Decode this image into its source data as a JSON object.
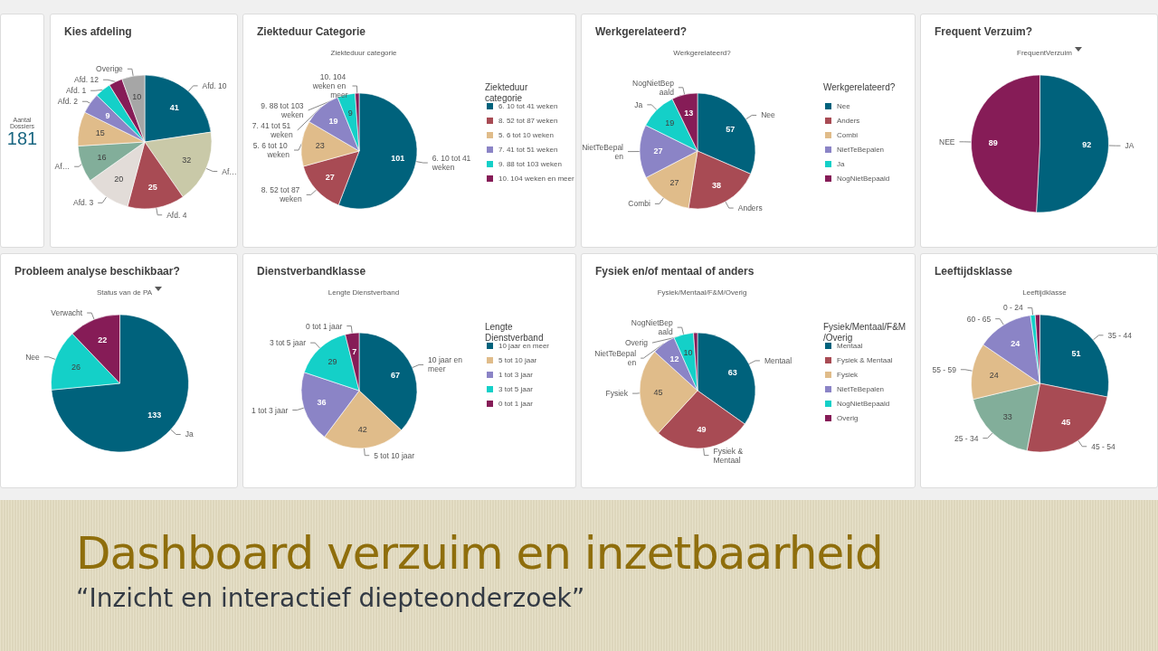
{
  "chart_data": [
    {
      "type": "other",
      "annotations": [
        "Aantal Dossiers",
        "181"
      ]
    },
    {
      "type": "pie",
      "title": "Kies afdeling",
      "categories": [
        "Afd. 10",
        "Af…",
        "Afd. 4",
        "Afd. 3",
        "Af…",
        null,
        "Afd. 2",
        "Afd. 1",
        "Afd. 12",
        "Overige"
      ],
      "values": [
        41,
        32,
        25,
        20,
        16,
        15,
        9,
        7,
        6,
        10
      ],
      "value_labels": [
        "41",
        "32",
        "25",
        "20",
        "16",
        "15",
        "9",
        null,
        null,
        "10"
      ],
      "colors": [
        "#00627c",
        "#c9c9a8",
        "#a84b54",
        "#e2dcd8",
        "#82ae9a",
        "#e0bc8a",
        "#8b84c6",
        "#14d0c8",
        "#861c57",
        "#a6a6a6"
      ]
    },
    {
      "type": "pie",
      "title": "Ziekteduur Categorie",
      "subtitle": "Ziekteduur categorie",
      "legend": "right",
      "legend_title": "Ziekteduur categorie",
      "categories": [
        "6. 10 tot 41 weken",
        "8. 52 tot 87 weken",
        "5. 6 tot 10 weken",
        "7. 41 tot 51 weken",
        "9. 88 tot 103 weken",
        "10. 104 weken en meer"
      ],
      "values": [
        101,
        27,
        23,
        19,
        9,
        2
      ],
      "value_labels": [
        "101",
        "27",
        "23",
        "19",
        "9",
        null
      ],
      "colors": [
        "#00627c",
        "#a84b54",
        "#e0bc8a",
        "#8b84c6",
        "#14d0c8",
        "#861c57"
      ]
    },
    {
      "type": "pie",
      "title": "Werkgerelateerd?",
      "subtitle": "Werkgerelateerd?",
      "legend": "right",
      "legend_title": "Werkgerelateerd?",
      "categories": [
        "Nee",
        "Anders",
        "Combi",
        "NietTeBepalen",
        "Ja",
        "NogNietBepaald"
      ],
      "values": [
        57,
        38,
        27,
        27,
        19,
        13
      ],
      "value_labels": [
        "57",
        "38",
        "27",
        "27",
        "19",
        "13"
      ],
      "colors": [
        "#00627c",
        "#a84b54",
        "#e0bc8a",
        "#8b84c6",
        "#14d0c8",
        "#861c57"
      ]
    },
    {
      "type": "pie",
      "title": "Frequent Verzuim?",
      "subtitle": "FrequentVerzuim",
      "categories": [
        "JA",
        "NEE"
      ],
      "values": [
        92,
        89
      ],
      "value_labels": [
        "92",
        "89"
      ],
      "colors": [
        "#00627c",
        "#861c57"
      ]
    },
    {
      "type": "pie",
      "title": "Probleem analyse beschikbaar?",
      "subtitle": "Status van de PA",
      "categories": [
        "Ja",
        "Nee",
        "Verwacht"
      ],
      "values": [
        133,
        26,
        22
      ],
      "value_labels": [
        "133",
        "26",
        "22"
      ],
      "colors": [
        "#00627c",
        "#14d0c8",
        "#861c57"
      ]
    },
    {
      "type": "pie",
      "title": "Dienstverbandklasse",
      "subtitle": "Lengte Dienstverband",
      "legend": "right",
      "legend_title": "Lengte Dienstverband",
      "categories": [
        "10 jaar en meer",
        "5 tot 10 jaar",
        "1 tot 3 jaar",
        "3 tot 5 jaar",
        "0 tot 1 jaar"
      ],
      "values": [
        67,
        42,
        36,
        29,
        7
      ],
      "value_labels": [
        "67",
        "42",
        "36",
        "29",
        "7"
      ],
      "colors": [
        "#00627c",
        "#e0bc8a",
        "#8b84c6",
        "#14d0c8",
        "#861c57"
      ]
    },
    {
      "type": "pie",
      "title": "Fysiek en/of mentaal of anders",
      "subtitle": "Fysiek/Mentaal/F&M/Overig",
      "legend": "right",
      "legend_title": "Fysiek/Mentaal/F&M/Overig",
      "categories": [
        "Mentaal",
        "Fysiek & Mentaal",
        "Fysiek",
        "NietTeBepalen",
        "NogNietBepaald",
        "Overig"
      ],
      "values": [
        63,
        49,
        45,
        12,
        10,
        2
      ],
      "value_labels": [
        "63",
        "49",
        "45",
        "12",
        "10",
        null
      ],
      "colors": [
        "#00627c",
        "#a84b54",
        "#e0bc8a",
        "#8b84c6",
        "#14d0c8",
        "#861c57"
      ]
    },
    {
      "type": "pie",
      "title": "Leeftijdsklasse",
      "subtitle": "Leeftijdklasse",
      "categories": [
        "35 - 44",
        "45 - 54",
        "25 - 34",
        "55 - 59",
        "60 - 65",
        "0 - 24",
        null
      ],
      "values": [
        51,
        45,
        33,
        24,
        24,
        2,
        2
      ],
      "value_labels": [
        "51",
        "45",
        "33",
        "24",
        "24",
        null,
        null
      ],
      "colors": [
        "#00627c",
        "#a84b54",
        "#82ae9a",
        "#e0bc8a",
        "#8b84c6",
        "#14d0c8",
        "#861c57"
      ]
    },
    {
      "type": "other",
      "title": "Dashboard verzuim en inzetbaarheid",
      "subtitle": "“Inzicht en interactief diepteonderzoek”"
    }
  ]
}
